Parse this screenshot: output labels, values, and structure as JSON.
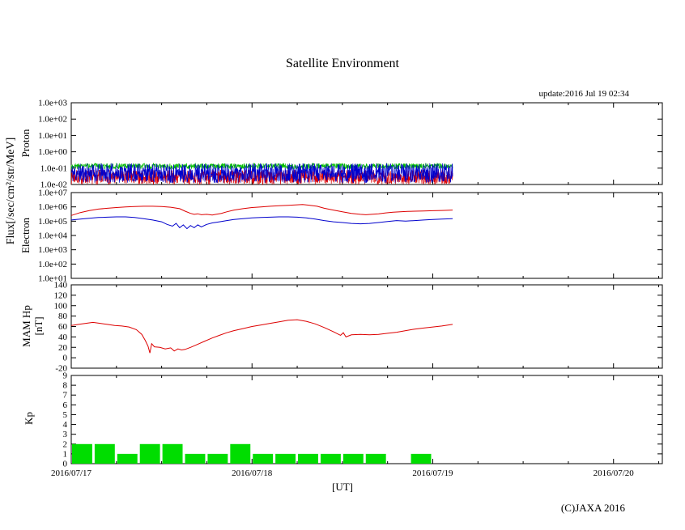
{
  "chart_meta": {
    "title": "Satellite Environment",
    "update_text": "update:2016 Jul 19 02:34",
    "copyright": "(C)JAXA 2016",
    "xlabel": "[UT]",
    "shared_ylabel": "Flux[/sec/cm²/str/MeV]",
    "xlim_days": [
      0,
      3.27
    ],
    "xtick_days": [
      0,
      1,
      2,
      3
    ],
    "xtick_labels": [
      "2016/07/17",
      "2016/07/18",
      "2016/07/19",
      "2016/07/20"
    ],
    "data_end_day": 2.11,
    "grid": "off",
    "legend": "none"
  },
  "chart_data": [
    {
      "id": "proton",
      "type": "line",
      "ylabel": "Proton",
      "yscale": "log10",
      "ylim_log10": [
        -2,
        3
      ],
      "ytick_values_log10": [
        -2,
        -1,
        0,
        1,
        2,
        3
      ],
      "ytick_labels": [
        "1.0e-02",
        "1.0e-01",
        "1.0e+00",
        "1.0e+01",
        "1.0e+02",
        "1.0e+03"
      ],
      "series": [
        {
          "name": "proton-channel-red",
          "color": "#dd0000",
          "style": "noise",
          "x_range_days": [
            0,
            2.11
          ],
          "mean_log10": -1.55,
          "spread_log10": 0.45,
          "points_count": 1400,
          "seed": 7
        },
        {
          "name": "proton-channel-green",
          "color": "#00bb00",
          "style": "noise",
          "x_range_days": [
            0,
            2.11
          ],
          "mean_log10": -0.88,
          "spread_log10": 0.18,
          "points_count": 1400,
          "seed": 3
        },
        {
          "name": "proton-channel-blue",
          "color": "#0000cc",
          "style": "noise",
          "x_range_days": [
            0,
            2.11
          ],
          "mean_log10": -1.3,
          "spread_log10": 0.6,
          "points_count": 1400,
          "seed": 11
        }
      ]
    },
    {
      "id": "electron",
      "type": "line",
      "ylabel": "Electron",
      "yscale": "log10",
      "ylim_log10": [
        1,
        7
      ],
      "ytick_values_log10": [
        1,
        2,
        3,
        4,
        5,
        6,
        7
      ],
      "ytick_labels": [
        "1.0e+01",
        "1.0e+02",
        "1.0e+03",
        "1.0e+04",
        "1.0e+05",
        "1.0e+06",
        "1.0e+07"
      ],
      "series": [
        {
          "name": "electron-high-channel",
          "color": "#dd0000",
          "style": "points",
          "points": [
            [
              0,
              250000.0
            ],
            [
              0.05,
              400000.0
            ],
            [
              0.1,
              550000.0
            ],
            [
              0.15,
              700000.0
            ],
            [
              0.2,
              800000.0
            ],
            [
              0.25,
              900000.0
            ],
            [
              0.3,
              1000000.0
            ],
            [
              0.35,
              1050000.0
            ],
            [
              0.4,
              1100000.0
            ],
            [
              0.45,
              1100000.0
            ],
            [
              0.5,
              1050000.0
            ],
            [
              0.55,
              950000.0
            ],
            [
              0.6,
              750000.0
            ],
            [
              0.63,
              500000.0
            ],
            [
              0.66,
              350000.0
            ],
            [
              0.68,
              300000.0
            ],
            [
              0.7,
              330000.0
            ],
            [
              0.72,
              280000.0
            ],
            [
              0.75,
              300000.0
            ],
            [
              0.78,
              270000.0
            ],
            [
              0.8,
              300000.0
            ],
            [
              0.83,
              350000.0
            ],
            [
              0.86,
              450000.0
            ],
            [
              0.9,
              600000.0
            ],
            [
              0.95,
              750000.0
            ],
            [
              1.0,
              900000.0
            ],
            [
              1.05,
              1000000.0
            ],
            [
              1.1,
              1100000.0
            ],
            [
              1.15,
              1200000.0
            ],
            [
              1.2,
              1300000.0
            ],
            [
              1.25,
              1400000.0
            ],
            [
              1.28,
              1450000.0
            ],
            [
              1.32,
              1300000.0
            ],
            [
              1.36,
              1100000.0
            ],
            [
              1.4,
              800000.0
            ],
            [
              1.45,
              600000.0
            ],
            [
              1.5,
              450000.0
            ],
            [
              1.55,
              350000.0
            ],
            [
              1.6,
              300000.0
            ],
            [
              1.63,
              280000.0
            ],
            [
              1.66,
              300000.0
            ],
            [
              1.7,
              330000.0
            ],
            [
              1.74,
              380000.0
            ],
            [
              1.78,
              420000.0
            ],
            [
              1.82,
              450000.0
            ],
            [
              1.86,
              480000.0
            ],
            [
              1.9,
              500000.0
            ],
            [
              1.95,
              520000.0
            ],
            [
              2.0,
              540000.0
            ],
            [
              2.05,
              560000.0
            ],
            [
              2.11,
              600000.0
            ]
          ]
        },
        {
          "name": "electron-low-channel",
          "color": "#0000cc",
          "style": "points",
          "points": [
            [
              0,
              120000.0
            ],
            [
              0.05,
              140000.0
            ],
            [
              0.1,
              160000.0
            ],
            [
              0.15,
              180000.0
            ],
            [
              0.2,
              190000.0
            ],
            [
              0.25,
              200000.0
            ],
            [
              0.3,
              200000.0
            ],
            [
              0.35,
              180000.0
            ],
            [
              0.4,
              150000.0
            ],
            [
              0.45,
              120000.0
            ],
            [
              0.5,
              90000.0
            ],
            [
              0.53,
              60000.0
            ],
            [
              0.56,
              45000.0
            ],
            [
              0.58,
              70000.0
            ],
            [
              0.6,
              35000.0
            ],
            [
              0.62,
              55000.0
            ],
            [
              0.64,
              30000.0
            ],
            [
              0.66,
              50000.0
            ],
            [
              0.68,
              35000.0
            ],
            [
              0.7,
              55000.0
            ],
            [
              0.72,
              40000.0
            ],
            [
              0.75,
              60000.0
            ],
            [
              0.78,
              75000.0
            ],
            [
              0.82,
              90000.0
            ],
            [
              0.86,
              110000.0
            ],
            [
              0.9,
              130000.0
            ],
            [
              0.95,
              150000.0
            ],
            [
              1.0,
              170000.0
            ],
            [
              1.05,
              180000.0
            ],
            [
              1.1,
              190000.0
            ],
            [
              1.15,
              200000.0
            ],
            [
              1.2,
              200000.0
            ],
            [
              1.25,
              190000.0
            ],
            [
              1.3,
              170000.0
            ],
            [
              1.35,
              140000.0
            ],
            [
              1.4,
              110000.0
            ],
            [
              1.45,
              90000.0
            ],
            [
              1.5,
              80000.0
            ],
            [
              1.55,
              70000.0
            ],
            [
              1.6,
              65000.0
            ],
            [
              1.65,
              70000.0
            ],
            [
              1.7,
              80000.0
            ],
            [
              1.75,
              95000.0
            ],
            [
              1.8,
              110000.0
            ],
            [
              1.85,
              100000.0
            ],
            [
              1.9,
              110000.0
            ],
            [
              1.95,
              120000.0
            ],
            [
              2.0,
              130000.0
            ],
            [
              2.05,
              140000.0
            ],
            [
              2.11,
              150000.0
            ]
          ]
        }
      ]
    },
    {
      "id": "mam",
      "type": "line",
      "ylabel": "MAM Hp",
      "ylabel_unit": "[nT]",
      "yscale": "linear",
      "ylim": [
        -20,
        140
      ],
      "ytick_values": [
        -20,
        0,
        20,
        40,
        60,
        80,
        100,
        120,
        140
      ],
      "ytick_labels": [
        "-20",
        "0",
        "20",
        "40",
        "60",
        "80",
        "100",
        "120",
        "140"
      ],
      "series": [
        {
          "name": "mam-hp",
          "color": "#dd0000",
          "style": "points",
          "points": [
            [
              0,
              62
            ],
            [
              0.04,
              64
            ],
            [
              0.08,
              66
            ],
            [
              0.12,
              68
            ],
            [
              0.16,
              66
            ],
            [
              0.2,
              64
            ],
            [
              0.24,
              62
            ],
            [
              0.28,
              61
            ],
            [
              0.32,
              59
            ],
            [
              0.36,
              54
            ],
            [
              0.39,
              45
            ],
            [
              0.41,
              33
            ],
            [
              0.425,
              22
            ],
            [
              0.435,
              9
            ],
            [
              0.445,
              27
            ],
            [
              0.46,
              21
            ],
            [
              0.49,
              20
            ],
            [
              0.52,
              17
            ],
            [
              0.55,
              19
            ],
            [
              0.57,
              13
            ],
            [
              0.59,
              17
            ],
            [
              0.61,
              15
            ],
            [
              0.63,
              16
            ],
            [
              0.66,
              20
            ],
            [
              0.7,
              26
            ],
            [
              0.74,
              32
            ],
            [
              0.78,
              38
            ],
            [
              0.82,
              43
            ],
            [
              0.86,
              48
            ],
            [
              0.9,
              52
            ],
            [
              0.95,
              56
            ],
            [
              1.0,
              60
            ],
            [
              1.05,
              63
            ],
            [
              1.1,
              66
            ],
            [
              1.15,
              69
            ],
            [
              1.2,
              72
            ],
            [
              1.25,
              73
            ],
            [
              1.3,
              70
            ],
            [
              1.35,
              65
            ],
            [
              1.4,
              58
            ],
            [
              1.45,
              50
            ],
            [
              1.49,
              43
            ],
            [
              1.505,
              48
            ],
            [
              1.52,
              40
            ],
            [
              1.55,
              44
            ],
            [
              1.6,
              45
            ],
            [
              1.65,
              44
            ],
            [
              1.7,
              45
            ],
            [
              1.75,
              47
            ],
            [
              1.8,
              49
            ],
            [
              1.85,
              52
            ],
            [
              1.9,
              55
            ],
            [
              1.95,
              57
            ],
            [
              2.0,
              59
            ],
            [
              2.05,
              61
            ],
            [
              2.11,
              64
            ]
          ]
        }
      ]
    },
    {
      "id": "kp",
      "type": "bar",
      "ylabel": "Kp",
      "yscale": "linear",
      "ylim": [
        0,
        9
      ],
      "ytick_values": [
        0,
        1,
        2,
        3,
        4,
        5,
        6,
        7,
        8,
        9
      ],
      "ytick_labels": [
        "0",
        "1",
        "2",
        "3",
        "4",
        "5",
        "6",
        "7",
        "8",
        "9"
      ],
      "bin_hours": 3,
      "color": "#00dd00",
      "values": [
        2,
        2,
        1,
        2,
        2,
        1,
        1,
        2,
        1,
        1,
        1,
        1,
        1,
        1,
        0,
        1
      ]
    }
  ]
}
